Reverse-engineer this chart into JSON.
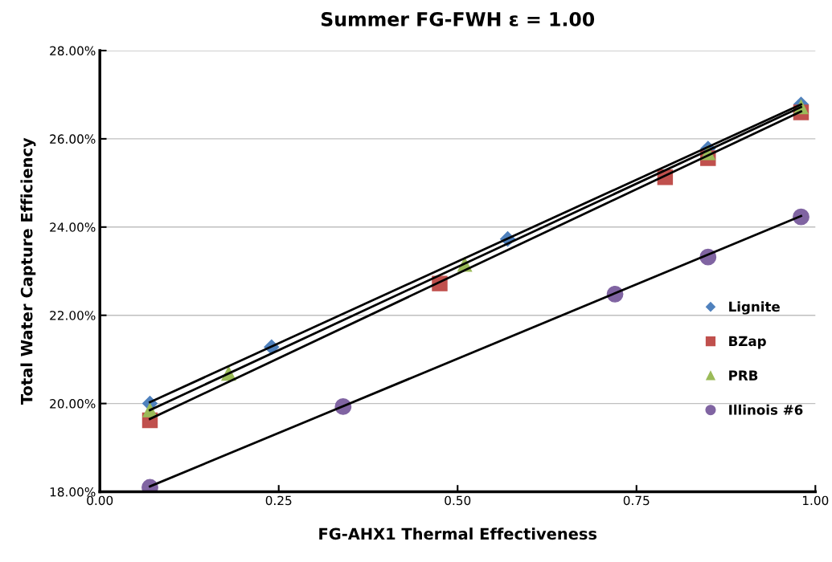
{
  "chart_data": {
    "type": "scatter",
    "title": "Summer FG-FWH ε = 1.00",
    "xlabel": "FG-AHX1 Thermal Effectiveness",
    "ylabel": "Total Water Capture Efficiency",
    "xlim": [
      0,
      1
    ],
    "xticks": [
      {
        "value": 0,
        "label": "0.00"
      },
      {
        "value": 0.25,
        "label": "0.25"
      },
      {
        "value": 0.5,
        "label": "0.50"
      },
      {
        "value": 0.75,
        "label": "0.75"
      },
      {
        "value": 1,
        "label": "1.00"
      }
    ],
    "ylim": [
      18,
      28
    ],
    "yticks": [
      {
        "value": 18,
        "label": "18.00%"
      },
      {
        "value": 20,
        "label": "20.00%"
      },
      {
        "value": 22,
        "label": "22.00%"
      },
      {
        "value": 24,
        "label": "24.00%"
      },
      {
        "value": 26,
        "label": "26.00%"
      },
      {
        "value": 28,
        "label": "28.00%"
      }
    ],
    "grid": "y",
    "legend": "right",
    "series": [
      {
        "name": "Lignite",
        "color": "#4f81bd",
        "marker": "diamond",
        "x": [
          0.07,
          0.24,
          0.57,
          0.85,
          0.98
        ],
        "values": [
          20.0,
          21.28,
          23.73,
          25.78,
          26.78
        ]
      },
      {
        "name": "BZap",
        "color": "#c0504d",
        "marker": "square",
        "x": [
          0.07,
          0.475,
          0.79,
          0.85,
          0.98
        ],
        "values": [
          19.62,
          22.72,
          25.13,
          25.56,
          26.6
        ]
      },
      {
        "name": "PRB",
        "color": "#9bbb59",
        "marker": "triangle",
        "x": [
          0.07,
          0.18,
          0.51,
          0.85,
          0.98
        ],
        "values": [
          19.85,
          20.68,
          23.15,
          25.68,
          26.72
        ]
      },
      {
        "name": "Illinois #6",
        "color": "#8064a2",
        "marker": "circle",
        "x": [
          0.07,
          0.34,
          0.72,
          0.85,
          0.98
        ],
        "values": [
          18.1,
          19.93,
          22.48,
          23.32,
          24.23
        ]
      },
      {
        "type": "line",
        "color": "#000000",
        "x": [
          0.07,
          0.98
        ],
        "values": [
          20.03,
          26.78
        ]
      },
      {
        "type": "line",
        "color": "#000000",
        "x": [
          0.07,
          0.98
        ],
        "values": [
          19.65,
          26.62
        ]
      },
      {
        "type": "line",
        "color": "#000000",
        "x": [
          0.07,
          0.98
        ],
        "values": [
          19.85,
          26.72
        ]
      },
      {
        "type": "line",
        "color": "#000000",
        "x": [
          0.07,
          0.98
        ],
        "values": [
          18.12,
          24.25
        ]
      }
    ]
  }
}
